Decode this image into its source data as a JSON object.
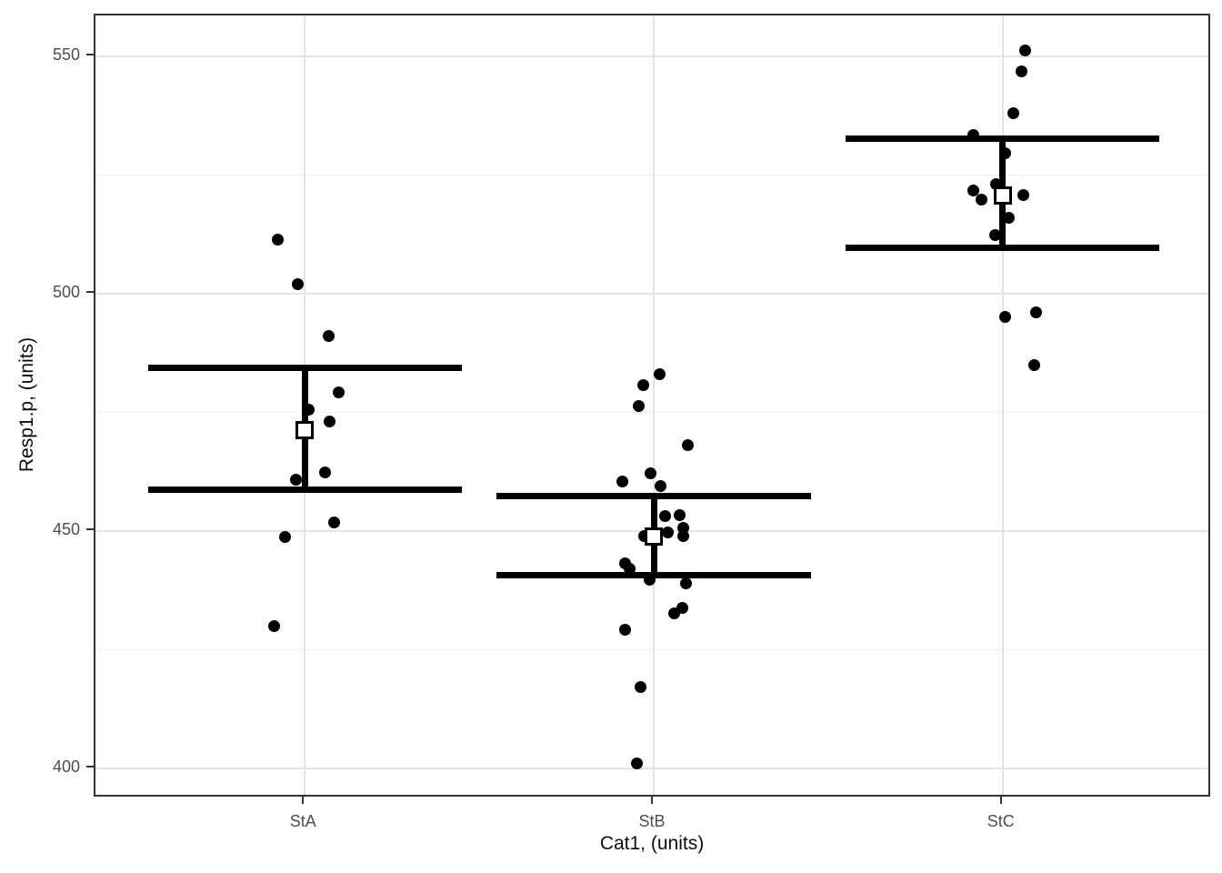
{
  "chart_data": {
    "type": "scatter",
    "subtype": "jittered-points-with-mean-and-interval-crossbars",
    "title": "",
    "xlabel": "Cat1, (units)",
    "ylabel": "Resp1.p, (units)",
    "x_categories": [
      "StA",
      "StB",
      "StC"
    ],
    "y_ticks": [
      400,
      450,
      500,
      550
    ],
    "y_minor_ticks": [
      425,
      475,
      525
    ],
    "ylim": [
      393.7,
      558.6
    ],
    "grid": "major and minor horizontal, major vertical at category centers",
    "legend_position": "none",
    "point_shape": "filled circle, black",
    "mean_marker": "open white square with black border",
    "interval_marker": "horizontal crossbars joined by thick vertical line",
    "series": [
      {
        "category": "StA",
        "mean": 471.3,
        "interval_lower": 458.7,
        "interval_upper": 484.3,
        "points": [
          {
            "dx": -30,
            "v": 511.3
          },
          {
            "dx": -8,
            "v": 502.0
          },
          {
            "dx": 26,
            "v": 491.0
          },
          {
            "dx": 37,
            "v": 479.3
          },
          {
            "dx": 4,
            "v": 475.6
          },
          {
            "dx": 27,
            "v": 473.0
          },
          {
            "dx": 22,
            "v": 462.3
          },
          {
            "dx": -10,
            "v": 460.8
          },
          {
            "dx": 32,
            "v": 451.8
          },
          {
            "dx": -22,
            "v": 448.7
          },
          {
            "dx": -34,
            "v": 430.0
          }
        ]
      },
      {
        "category": "StB",
        "mean": 448.8,
        "interval_lower": 440.8,
        "interval_upper": 457.4,
        "points": [
          {
            "dx": 6,
            "v": 483.0
          },
          {
            "dx": -12,
            "v": 480.8
          },
          {
            "dx": -17,
            "v": 476.4
          },
          {
            "dx": 37,
            "v": 468.2
          },
          {
            "dx": -4,
            "v": 462.2
          },
          {
            "dx": -35,
            "v": 460.5
          },
          {
            "dx": 7,
            "v": 459.4
          },
          {
            "dx": 12,
            "v": 453.2
          },
          {
            "dx": 28,
            "v": 453.4
          },
          {
            "dx": -11,
            "v": 449.0
          },
          {
            "dx": 15,
            "v": 449.7
          },
          {
            "dx": 32,
            "v": 450.7
          },
          {
            "dx": 32,
            "v": 448.9
          },
          {
            "dx": -32,
            "v": 443.3
          },
          {
            "dx": -27,
            "v": 442.1
          },
          {
            "dx": -5,
            "v": 439.8
          },
          {
            "dx": 35,
            "v": 439.0
          },
          {
            "dx": 31,
            "v": 433.8
          },
          {
            "dx": 22,
            "v": 432.6
          },
          {
            "dx": -32,
            "v": 429.2
          },
          {
            "dx": -15,
            "v": 417.1
          },
          {
            "dx": -19,
            "v": 401.0
          }
        ]
      },
      {
        "category": "StC",
        "mean": 520.7,
        "interval_lower": 509.6,
        "interval_upper": 532.6,
        "points": [
          {
            "dx": 25,
            "v": 551.3
          },
          {
            "dx": 21,
            "v": 546.8
          },
          {
            "dx": 12,
            "v": 538.1
          },
          {
            "dx": -32,
            "v": 533.4
          },
          {
            "dx": 3,
            "v": 529.5
          },
          {
            "dx": -7,
            "v": 523.0
          },
          {
            "dx": -32,
            "v": 521.8
          },
          {
            "dx": -23,
            "v": 519.9
          },
          {
            "dx": 23,
            "v": 520.7
          },
          {
            "dx": 7,
            "v": 515.9
          },
          {
            "dx": -8,
            "v": 512.3
          },
          {
            "dx": 3,
            "v": 495.1
          },
          {
            "dx": 37,
            "v": 496.1
          },
          {
            "dx": 35,
            "v": 485.0
          }
        ]
      }
    ]
  },
  "style": {
    "point_color": "#000000",
    "crossbar_color": "#000000",
    "mean_fill": "#ffffff",
    "mean_border": "#000000",
    "grid_major_color": "#e4e4e4",
    "grid_minor_color": "#efefef",
    "panel_border_color": "#333333",
    "tick_color": "#333333",
    "tick_label_color": "#4d4d4d",
    "title_color": "#0d0d0d",
    "background": "#ffffff"
  }
}
